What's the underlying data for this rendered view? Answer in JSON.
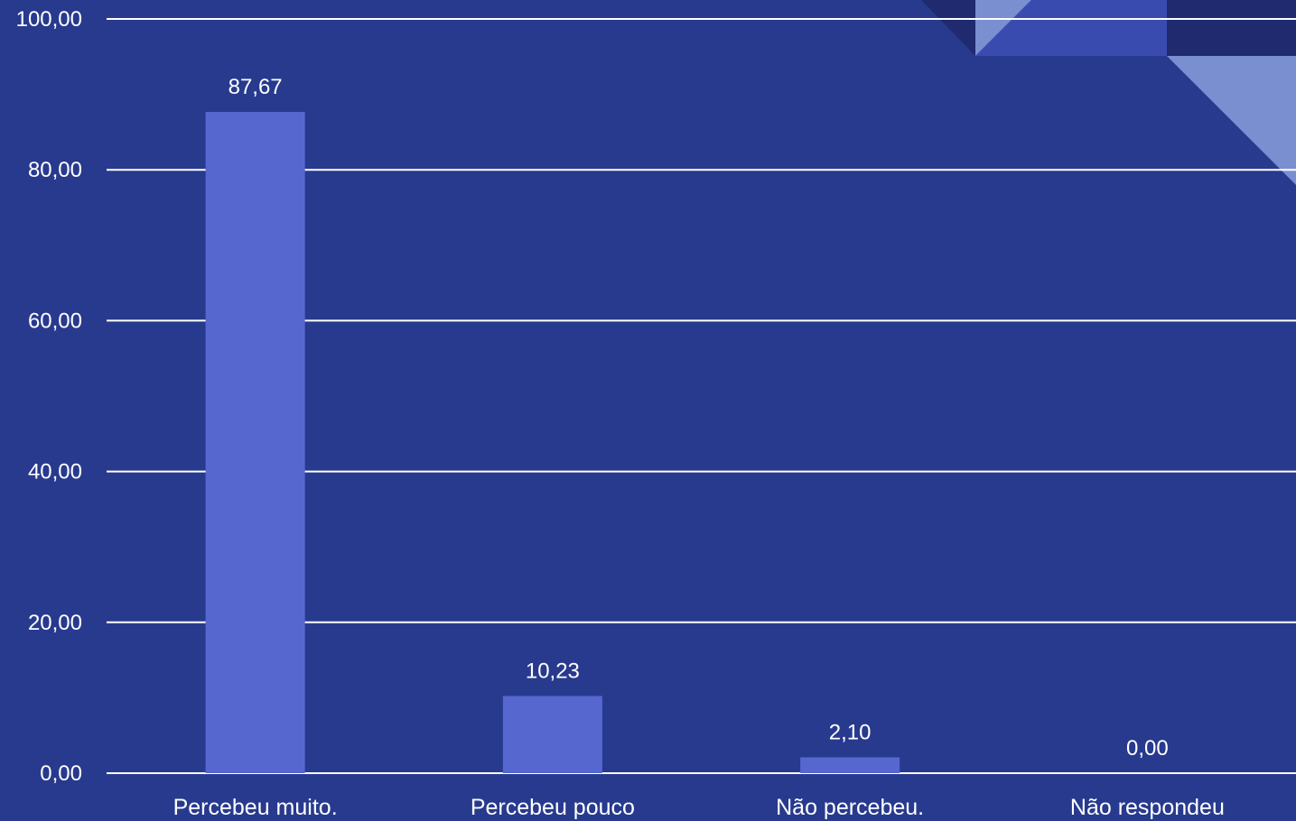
{
  "chart_data": {
    "type": "bar",
    "categories": [
      "Percebeu muito.",
      "Percebeu pouco",
      "Não percebeu.",
      "Não respondeu"
    ],
    "values": [
      87.67,
      10.23,
      2.1,
      0.0
    ],
    "data_labels": [
      "87,67",
      "10,23",
      "2,10",
      "0,00"
    ],
    "y_ticks": [
      0,
      20,
      40,
      60,
      80,
      100
    ],
    "y_tick_labels": [
      "0,00",
      "20,00",
      "40,00",
      "60,00",
      "80,00",
      "100,00"
    ],
    "ylim": [
      0,
      100
    ],
    "grid": true,
    "legend": "none",
    "colors": {
      "background": "#283a8e",
      "bar": "#5668d0",
      "grid": "#ffffff",
      "text": "#ffffff",
      "decor_dark": "#1f2b6e",
      "decor_mid": "#3a4bb0",
      "decor_light": "#7a8fd0"
    }
  }
}
